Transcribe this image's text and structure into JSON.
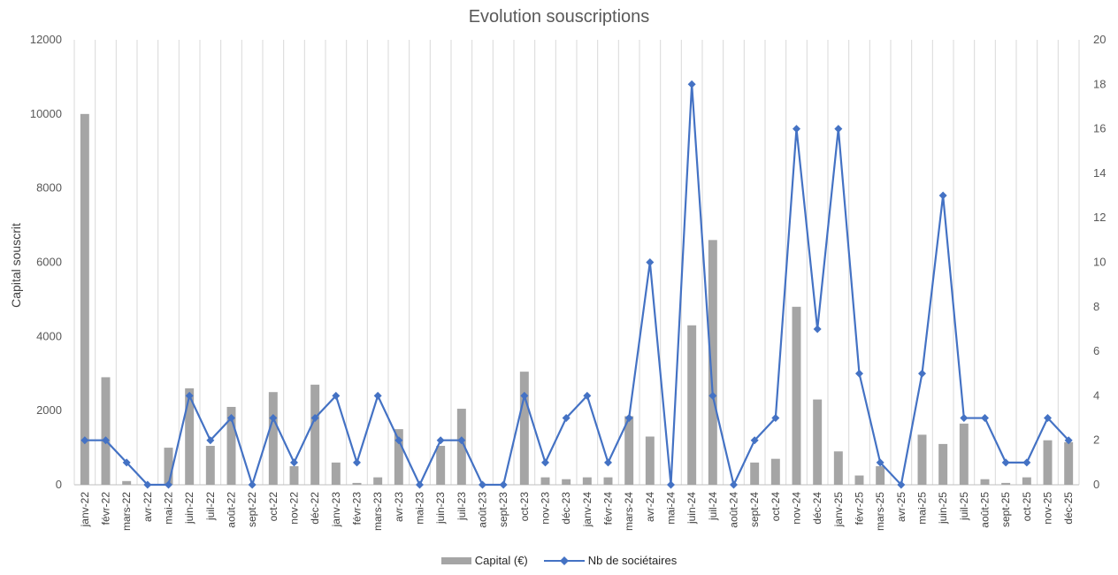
{
  "chart_data": {
    "type": "bar",
    "title": "Evolution souscriptions",
    "ylabel": "Capital souscrit",
    "ylabel_right": "",
    "ylim": [
      0,
      12000
    ],
    "ylim_right": [
      0,
      20
    ],
    "yticks": [
      0,
      2000,
      4000,
      6000,
      8000,
      10000,
      12000
    ],
    "yticks_right": [
      0,
      2,
      4,
      6,
      8,
      10,
      12,
      14,
      16,
      18,
      20
    ],
    "grid": "vertical",
    "legend_position": "bottom",
    "categories": [
      "janv-22",
      "févr-22",
      "mars-22",
      "avr-22",
      "mai-22",
      "juin-22",
      "juil-22",
      "août-22",
      "sept-22",
      "oct-22",
      "nov-22",
      "déc-22",
      "janv-23",
      "févr-23",
      "mars-23",
      "avr-23",
      "mai-23",
      "juin-23",
      "juil-23",
      "août-23",
      "sept-23",
      "oct-23",
      "nov-23",
      "déc-23",
      "janv-24",
      "févr-24",
      "mars-24",
      "avr-24",
      "mai-24",
      "juin-24",
      "juil-24",
      "août-24",
      "sept-24",
      "oct-24",
      "nov-24",
      "déc-24",
      "janv-25",
      "févr-25",
      "mars-25",
      "avr-25",
      "mai-25",
      "juin-25",
      "juil-25",
      "août-25",
      "sept-25",
      "oct-25",
      "nov-25",
      "déc-25"
    ],
    "series": [
      {
        "name": "Capital (€)",
        "type": "bar",
        "axis": "left",
        "color": "#a5a5a5",
        "values": [
          10000,
          2900,
          100,
          0,
          1000,
          2600,
          1050,
          2100,
          0,
          2500,
          500,
          2700,
          600,
          50,
          200,
          1500,
          0,
          1050,
          2050,
          0,
          0,
          3050,
          200,
          150,
          200,
          200,
          1850,
          1300,
          0,
          4300,
          6600,
          0,
          600,
          700,
          4800,
          2300,
          900,
          250,
          500,
          0,
          1350,
          1100,
          1650,
          150,
          50,
          200,
          1200,
          1150
        ]
      },
      {
        "name": "Nb de sociétaires",
        "type": "line",
        "axis": "right",
        "color": "#4472c4",
        "values": [
          2,
          2,
          1,
          0,
          0,
          4,
          2,
          3,
          0,
          3,
          1,
          3,
          4,
          1,
          4,
          2,
          0,
          2,
          2,
          0,
          0,
          4,
          1,
          3,
          4,
          1,
          3,
          10,
          0,
          18,
          4,
          0,
          2,
          3,
          16,
          7,
          16,
          5,
          1,
          0,
          5,
          13,
          3,
          3,
          1,
          1,
          3,
          2
        ]
      }
    ]
  }
}
